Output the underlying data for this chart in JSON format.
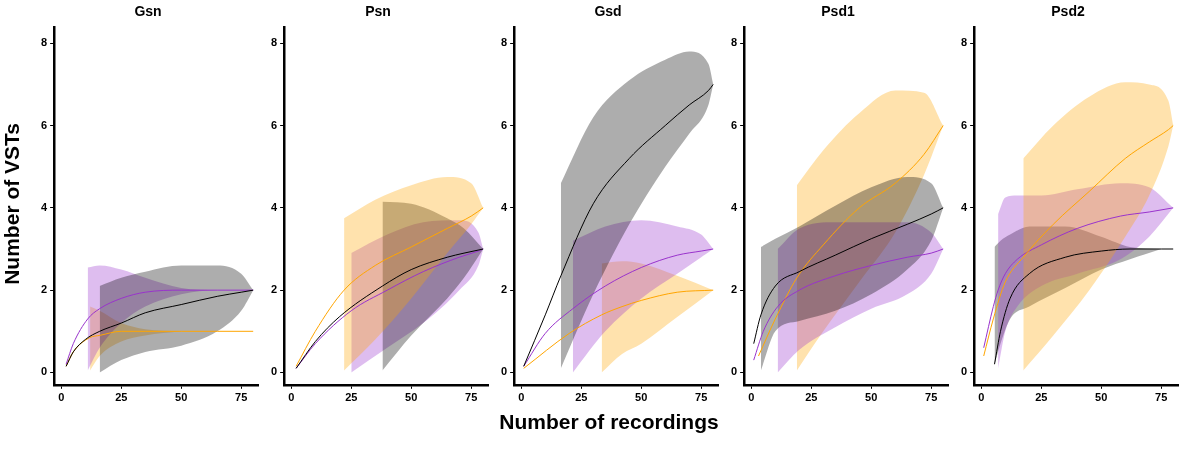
{
  "chart_data": [
    {
      "type": "line",
      "title": "Gsn",
      "ylabel": "Number of VSTs",
      "xlim": [
        -3,
        82
      ],
      "ylim": [
        -0.3,
        8.4
      ],
      "xticks": [
        0,
        25,
        50,
        75
      ],
      "yticks": [
        0,
        2,
        4,
        6,
        8
      ],
      "grid": false,
      "legend": false,
      "marker": "none",
      "series": [
        {
          "color": "#000000",
          "x": [
            2,
            5,
            10,
            16,
            25,
            35,
            50,
            65,
            75,
            80
          ],
          "values": [
            0.15,
            0.5,
            0.8,
            1.0,
            1.2,
            1.45,
            1.65,
            1.85,
            1.95,
            2.0
          ],
          "lower": [
            null,
            null,
            null,
            0.0,
            0.3,
            0.5,
            0.65,
            1.0,
            1.5,
            2.0
          ],
          "upper": [
            null,
            null,
            null,
            2.1,
            2.3,
            2.45,
            2.6,
            2.6,
            2.4,
            2.0
          ]
        },
        {
          "color": "#9933cc",
          "x": [
            2,
            5,
            11,
            16,
            25,
            35,
            50,
            65,
            80
          ],
          "values": [
            0.2,
            0.7,
            1.3,
            1.55,
            1.8,
            1.95,
            2.0,
            2.0,
            2.0
          ],
          "lower": [
            null,
            null,
            0.05,
            0.6,
            1.2,
            1.6,
            1.9,
            2.0,
            2.0
          ],
          "upper": [
            null,
            null,
            2.55,
            2.6,
            2.5,
            2.3,
            2.05,
            2.0,
            2.0
          ]
        },
        {
          "color": "#ffa500",
          "x": [
            2,
            5,
            12,
            16,
            25,
            35,
            50,
            65,
            80
          ],
          "values": [
            0.15,
            0.5,
            0.85,
            0.9,
            1.0,
            1.0,
            1.0,
            1.0,
            1.0
          ],
          "lower": [
            null,
            null,
            0.05,
            0.4,
            0.75,
            0.9,
            1.0,
            null,
            null
          ],
          "upper": [
            null,
            null,
            1.6,
            1.5,
            1.2,
            1.05,
            1.0,
            null,
            null
          ]
        }
      ]
    },
    {
      "type": "line",
      "title": "Psn",
      "xlim": [
        -3,
        82
      ],
      "ylim": [
        -0.3,
        8.4
      ],
      "xticks": [
        0,
        25,
        50,
        75
      ],
      "yticks": [
        0,
        2,
        4,
        6,
        8
      ],
      "grid": false,
      "legend": false,
      "marker": "none",
      "series": [
        {
          "color": "#ffa500",
          "x": [
            2,
            10,
            22,
            35,
            50,
            65,
            75,
            80
          ],
          "values": [
            0.15,
            1.0,
            2.0,
            2.6,
            3.05,
            3.5,
            3.8,
            4.0
          ],
          "lower": [
            null,
            null,
            0.05,
            0.8,
            1.8,
            2.9,
            3.6,
            4.0
          ],
          "upper": [
            null,
            null,
            3.75,
            4.2,
            4.55,
            4.75,
            4.6,
            4.0
          ]
        },
        {
          "color": "#000000",
          "x": [
            2,
            10,
            20,
            38,
            50,
            65,
            72,
            80
          ],
          "values": [
            0.1,
            0.75,
            1.35,
            2.1,
            2.5,
            2.8,
            2.9,
            3.0
          ],
          "lower": [
            null,
            null,
            null,
            0.05,
            0.9,
            1.8,
            2.3,
            3.0
          ],
          "upper": [
            null,
            null,
            null,
            4.15,
            4.1,
            3.75,
            3.5,
            3.0
          ]
        },
        {
          "color": "#9933cc",
          "x": [
            2,
            10,
            25,
            40,
            55,
            70,
            78,
            80
          ],
          "values": [
            0.1,
            0.7,
            1.5,
            2.0,
            2.45,
            2.8,
            2.95,
            3.0
          ],
          "lower": [
            null,
            null,
            0.0,
            0.6,
            1.2,
            2.0,
            2.6,
            3.0
          ],
          "upper": [
            null,
            null,
            2.9,
            3.35,
            3.65,
            3.7,
            3.4,
            3.0
          ]
        }
      ]
    },
    {
      "type": "line",
      "title": "Gsd",
      "xlabel": "Number of recordings",
      "xlim": [
        -3,
        82
      ],
      "ylim": [
        -0.3,
        8.4
      ],
      "xticks": [
        0,
        25,
        50,
        75
      ],
      "yticks": [
        0,
        2,
        4,
        6,
        8
      ],
      "grid": false,
      "legend": false,
      "marker": "none",
      "series": [
        {
          "color": "#000000",
          "x": [
            1,
            10,
            16.5,
            30,
            45,
            60,
            70,
            78,
            80
          ],
          "values": [
            0.15,
            1.4,
            2.35,
            4.1,
            5.2,
            6.0,
            6.5,
            6.85,
            7.0
          ],
          "lower": [
            null,
            null,
            0.1,
            1.9,
            3.6,
            5.0,
            5.8,
            6.5,
            7.0
          ],
          "upper": [
            null,
            null,
            4.6,
            6.2,
            7.1,
            7.6,
            7.8,
            7.5,
            7.0
          ]
        },
        {
          "color": "#9933cc",
          "x": [
            1,
            10,
            21.5,
            35,
            50,
            65,
            75,
            80
          ],
          "values": [
            0.15,
            0.95,
            1.55,
            2.1,
            2.55,
            2.85,
            2.95,
            3.0
          ],
          "lower": [
            null,
            null,
            0.0,
            1.0,
            1.8,
            2.4,
            2.8,
            3.0
          ],
          "upper": [
            null,
            null,
            3.2,
            3.55,
            3.7,
            3.55,
            3.35,
            3.0
          ]
        },
        {
          "color": "#ffa500",
          "x": [
            1,
            20,
            33.5,
            42,
            50,
            65,
            80
          ],
          "values": [
            0.1,
            0.95,
            1.4,
            1.6,
            1.75,
            1.95,
            2.0
          ],
          "lower": [
            null,
            null,
            0.0,
            0.45,
            0.7,
            1.35,
            2.0
          ],
          "upper": [
            null,
            null,
            2.65,
            2.7,
            2.65,
            2.35,
            2.0
          ]
        }
      ]
    },
    {
      "type": "line",
      "title": "Psd1",
      "xlim": [
        -3,
        82
      ],
      "ylim": [
        -0.3,
        8.4
      ],
      "xticks": [
        0,
        25,
        50,
        75
      ],
      "yticks": [
        0,
        2,
        4,
        6,
        8
      ],
      "grid": false,
      "legend": false,
      "marker": "none",
      "series": [
        {
          "color": "#000000",
          "x": [
            1,
            4,
            10,
            20,
            35,
            50,
            65,
            75,
            80
          ],
          "values": [
            0.7,
            1.4,
            2.1,
            2.45,
            2.85,
            3.25,
            3.6,
            3.85,
            4.0
          ],
          "lower": [
            null,
            0.05,
            1.0,
            1.25,
            1.5,
            1.9,
            2.5,
            3.2,
            4.0
          ],
          "upper": [
            null,
            3.05,
            3.25,
            3.55,
            4.05,
            4.5,
            4.75,
            4.6,
            4.0
          ]
        },
        {
          "color": "#9933cc",
          "x": [
            1,
            5,
            11,
            20,
            35,
            50,
            65,
            75,
            80
          ],
          "values": [
            0.3,
            1.0,
            1.6,
            2.0,
            2.35,
            2.6,
            2.8,
            2.9,
            3.0
          ],
          "lower": [
            null,
            null,
            0.0,
            0.55,
            1.1,
            1.55,
            1.9,
            2.4,
            3.0
          ],
          "upper": [
            null,
            null,
            3.0,
            3.5,
            3.65,
            3.65,
            3.65,
            3.4,
            3.0
          ]
        },
        {
          "color": "#ffa500",
          "x": [
            3,
            10,
            19,
            30,
            45,
            60,
            72,
            80
          ],
          "values": [
            0.4,
            1.3,
            2.3,
            3.1,
            4.0,
            4.6,
            5.3,
            6.0
          ],
          "lower": [
            null,
            null,
            0.05,
            1.0,
            2.2,
            3.4,
            4.8,
            6.0
          ],
          "upper": [
            null,
            null,
            4.55,
            5.4,
            6.3,
            6.85,
            6.8,
            6.0
          ]
        }
      ]
    },
    {
      "type": "line",
      "title": "Psd2",
      "xlim": [
        -3,
        82
      ],
      "ylim": [
        -0.3,
        8.4
      ],
      "xticks": [
        0,
        25,
        50,
        75
      ],
      "yticks": [
        0,
        2,
        4,
        6,
        8
      ],
      "grid": false,
      "legend": false,
      "marker": "none",
      "series": [
        {
          "color": "#ffa500",
          "x": [
            1,
            5,
            10,
            17.5,
            30,
            45,
            60,
            70,
            78,
            80
          ],
          "values": [
            0.4,
            1.3,
            2.2,
            2.8,
            3.6,
            4.4,
            5.2,
            5.6,
            5.9,
            6.0
          ],
          "lower": [
            null,
            null,
            null,
            0.05,
            0.9,
            2.0,
            3.3,
            4.3,
            5.5,
            6.0
          ],
          "upper": [
            null,
            null,
            null,
            5.2,
            6.0,
            6.7,
            7.05,
            7.0,
            6.6,
            6.0
          ]
        },
        {
          "color": "#9933cc",
          "x": [
            1,
            5,
            7,
            10,
            15,
            25,
            40,
            58,
            70,
            80
          ],
          "values": [
            0.6,
            1.6,
            2.0,
            2.4,
            2.75,
            3.1,
            3.5,
            3.8,
            3.9,
            4.0
          ],
          "lower": [
            null,
            null,
            0.1,
            1.0,
            1.6,
            2.1,
            2.4,
            2.75,
            3.3,
            4.0
          ],
          "upper": [
            null,
            null,
            3.85,
            4.25,
            4.3,
            4.3,
            4.45,
            4.6,
            4.5,
            4.0
          ]
        },
        {
          "color": "#000000",
          "x": [
            5.5,
            8,
            12,
            20,
            35,
            50,
            62,
            75,
            80
          ],
          "values": [
            0.2,
            1.0,
            1.8,
            2.4,
            2.8,
            2.95,
            3.0,
            3.0,
            3.0
          ],
          "lower": [
            0.2,
            0.7,
            1.3,
            1.6,
            2.05,
            2.5,
            2.75,
            3.0,
            null
          ],
          "upper": [
            3.05,
            3.2,
            3.35,
            3.55,
            3.55,
            3.3,
            3.05,
            3.0,
            null
          ]
        }
      ]
    }
  ]
}
